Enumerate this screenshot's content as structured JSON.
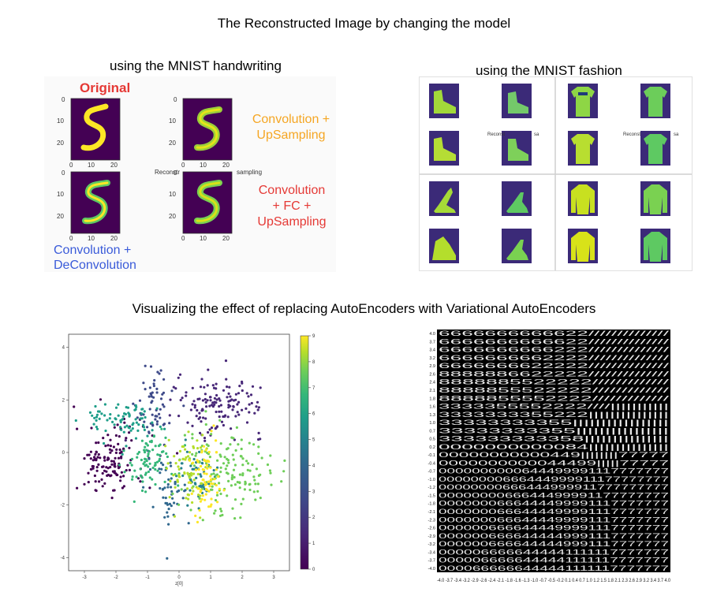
{
  "title": "The Reconstructed Image by changing the model",
  "mnist": {
    "heading": "using the MNIST handwriting",
    "original_label": "Original",
    "conv_up_label_1": "Convolution +",
    "conv_up_label_2": "UpSampling",
    "conv_fc_label_1": "Convolution",
    "conv_fc_label_2": "+ FC +",
    "conv_fc_label_3": "UpSampling",
    "deconv_label_1": "Convolution +",
    "deconv_label_2": "DeConvolution",
    "overlap_left": "Reconstr",
    "overlap_right": "sampling",
    "ticks_y": [
      "0",
      "10",
      "20"
    ],
    "ticks_x": [
      "0",
      "10",
      "20"
    ]
  },
  "fashion": {
    "heading": "using the MNIST fashion",
    "overlap_1": "Reconst",
    "overlap_2": "sa",
    "overlap_3": "Reconst",
    "overlap_4": "sa"
  },
  "vae": {
    "heading": "Visualizing the effect of replacing AutoEncoders with Variational AutoEncoders",
    "scatter": {
      "xlabel": "z[0]",
      "x_ticks": [
        "-3",
        "-2",
        "-1",
        "0",
        "1",
        "2",
        "3"
      ],
      "y_ticks": [
        "4",
        "2",
        "0",
        "-2",
        "-4"
      ],
      "colorbar_ticks": [
        "9",
        "8",
        "7",
        "6",
        "5",
        "4",
        "3",
        "2",
        "1",
        "0"
      ]
    },
    "grid": {
      "y_ticks": [
        "4.0",
        "3.7",
        "3.4",
        "3.2",
        "2.9",
        "2.6",
        "2.4",
        "2.1",
        "1.8",
        "1.6",
        "1.3",
        "1.0",
        "0.7",
        "0.5",
        "0.2",
        "-0.1",
        "-0.4",
        "-0.7",
        "-1.0",
        "-1.2",
        "-1.5",
        "-1.8",
        "-2.1",
        "-2.3",
        "-2.6",
        "-2.9",
        "-3.2",
        "-3.4",
        "-3.7",
        "-4.0"
      ],
      "x_ticks_label": "-4.0 -3.7 -3.4 -3.2 -2.9 -2.6 -2.4 -2.1 -1.8 -1.6 -1.3 -1.0 -0.7 -0.5 -0.2 0.1 0.4 0.7 1.0 1.2 1.5 1.8 2.1 2.3 2.6 2.9 3.2 3.4 3.7 4.0",
      "rows": [
        "6666666666622//////////////",
        "6666666666622//////////////",
        "6666666666222//////////////",
        "6666666662222//////////////",
        "6666666622222//////////////",
        "8888886622222//////////////",
        "8888885522222/////////////",
        "8888855522222/////////////",
        "8888855552222/////////////",
        "3333355552222////|||||||||||",
        "3333333355222|||||||||||||||",
        "33333333355|||||||||||||||||",
        "33333333355||||||||||||||||",
        "333333333358|||||||||||||||",
        "0000000000084|||||||||||||||",
        "00000000000449||||||||77777",
        "0000000000044499|||||77777",
        "0000000000644499991117777777",
        "00000000666444999911177777777",
        "00000000666444999911777777777",
        "0000000066644499991177777777",
        "0000000666444499991117777777",
        "0000000666444499991117777777",
        "0000000666444499991117777777",
        "0000006666444499991117777777",
        "0000006666444449991117777777",
        "0000006666444449991117777777",
        "0000066666444441111117777777",
        "0000066666444441111117777777",
        "0000666666444441111117777777"
      ]
    }
  }
}
